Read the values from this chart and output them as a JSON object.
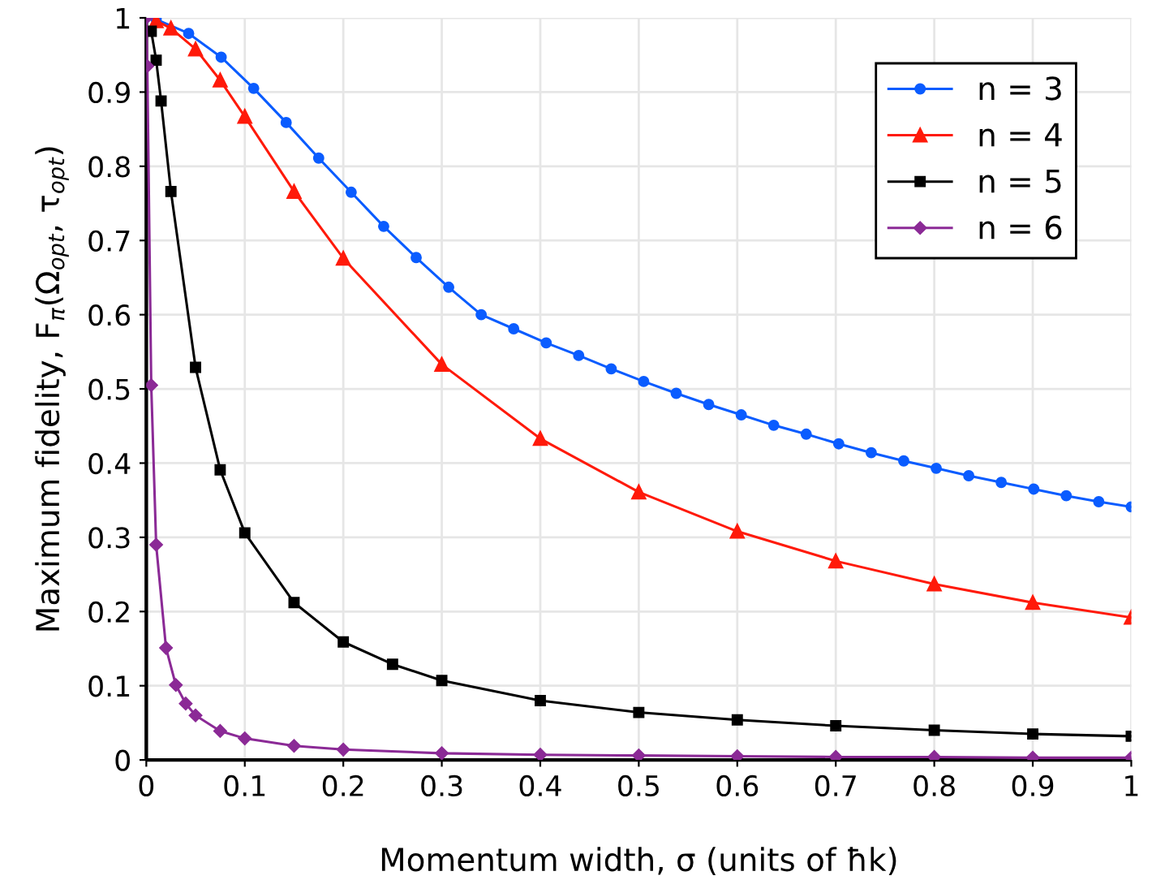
{
  "chart_data": {
    "type": "line",
    "xlabel": "Momentum width, σ (units of ħk)",
    "ylabel": "Maximum fidelity, F$_{π}$(Ω$_{opt}$, τ$_{opt}$)",
    "xlim": [
      0,
      1
    ],
    "ylim": [
      0,
      1
    ],
    "xticks": [
      0,
      0.1,
      0.2,
      0.3,
      0.4,
      0.5,
      0.6,
      0.7,
      0.8,
      0.9,
      1
    ],
    "yticks": [
      0,
      0.1,
      0.2,
      0.3,
      0.4,
      0.5,
      0.6,
      0.7,
      0.8,
      0.9,
      1
    ],
    "grid": true,
    "legend": "top right",
    "line_style": "solid",
    "series": [
      {
        "name": "n = 3",
        "color": "#0a5cff",
        "marker": "circle",
        "x": [
          0.01,
          0.043,
          0.076,
          0.109,
          0.142,
          0.175,
          0.208,
          0.241,
          0.274,
          0.307,
          0.34,
          0.373,
          0.406,
          0.439,
          0.472,
          0.505,
          0.538,
          0.571,
          0.604,
          0.637,
          0.67,
          0.703,
          0.736,
          0.769,
          0.802,
          0.835,
          0.868,
          0.901,
          0.934,
          0.967,
          1.0
        ],
        "values": [
          0.998,
          0.979,
          0.947,
          0.905,
          0.859,
          0.811,
          0.765,
          0.719,
          0.677,
          0.637,
          0.6,
          0.581,
          0.562,
          0.545,
          0.527,
          0.51,
          0.494,
          0.479,
          0.465,
          0.451,
          0.439,
          0.426,
          0.414,
          0.403,
          0.393,
          0.383,
          0.374,
          0.365,
          0.356,
          0.348,
          0.341
        ]
      },
      {
        "name": "n = 4",
        "color": "#ff1a0a",
        "marker": "triangle",
        "x": [
          0.01,
          0.025,
          0.05,
          0.075,
          0.1,
          0.15,
          0.2,
          0.3,
          0.4,
          0.5,
          0.6,
          0.7,
          0.8,
          0.9,
          1.0
        ],
        "values": [
          0.996,
          0.986,
          0.958,
          0.916,
          0.867,
          0.766,
          0.676,
          0.533,
          0.433,
          0.361,
          0.308,
          0.268,
          0.237,
          0.212,
          0.192
        ]
      },
      {
        "name": "n = 5",
        "color": "#000000",
        "marker": "square",
        "x": [
          0.005,
          0.01,
          0.015,
          0.025,
          0.05,
          0.075,
          0.1,
          0.15,
          0.2,
          0.25,
          0.3,
          0.4,
          0.5,
          0.6,
          0.7,
          0.8,
          0.9,
          1.0
        ],
        "values": [
          0.982,
          0.943,
          0.888,
          0.766,
          0.529,
          0.391,
          0.306,
          0.212,
          0.159,
          0.129,
          0.107,
          0.08,
          0.064,
          0.054,
          0.046,
          0.04,
          0.035,
          0.032
        ]
      },
      {
        "name": "n = 6",
        "color": "#8b2a96",
        "marker": "diamond",
        "x": [
          0,
          0.001,
          0.005,
          0.01,
          0.02,
          0.03,
          0.04,
          0.05,
          0.075,
          0.1,
          0.15,
          0.2,
          0.3,
          0.4,
          0.5,
          0.6,
          0.7,
          0.8,
          0.9,
          1.0
        ],
        "values": [
          1.0,
          0.935,
          0.505,
          0.29,
          0.151,
          0.101,
          0.076,
          0.06,
          0.039,
          0.029,
          0.019,
          0.014,
          0.009,
          0.007,
          0.006,
          0.005,
          0.004,
          0.004,
          0.003,
          0.003
        ]
      }
    ]
  }
}
